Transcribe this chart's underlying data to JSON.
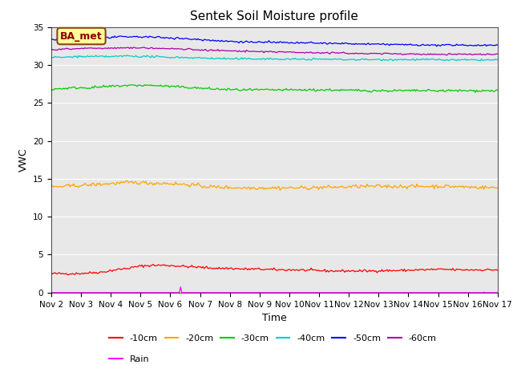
{
  "title": "Sentek Soil Moisture profile",
  "xlabel": "Time",
  "ylabel": "VWC",
  "ylim": [
    0,
    35
  ],
  "yticks": [
    0,
    5,
    10,
    15,
    20,
    25,
    30,
    35
  ],
  "x_start": 0,
  "x_end": 15,
  "num_points": 360,
  "annotation": "BA_met",
  "lines": {
    "-10cm": {
      "color": "#ff0000",
      "variation": 0.08,
      "trend": [
        2.5,
        2.5,
        2.5,
        2.6,
        2.7,
        3.0,
        3.2,
        3.5,
        3.6,
        3.6,
        3.5,
        3.4,
        3.3,
        3.2,
        3.2,
        3.1,
        3.1,
        3.05,
        3.0,
        3.0,
        2.95,
        2.9,
        2.85,
        2.85,
        2.85,
        2.85,
        2.9,
        2.9,
        2.95,
        3.0,
        3.05,
        3.05,
        3.0,
        3.0,
        3.0,
        3.0
      ]
    },
    "-20cm": {
      "color": "#ffa500",
      "variation": 0.12,
      "trend": [
        13.9,
        14.0,
        14.1,
        14.2,
        14.3,
        14.4,
        14.5,
        14.5,
        14.4,
        14.4,
        14.3,
        14.2,
        14.0,
        13.9,
        13.85,
        13.8,
        13.8,
        13.8,
        13.8,
        13.8,
        13.8,
        13.85,
        13.9,
        13.9,
        14.0,
        14.0,
        14.0,
        14.0,
        14.0,
        14.0,
        14.0,
        14.0,
        13.95,
        13.9,
        13.85,
        13.8
      ]
    },
    "-30cm": {
      "color": "#00cc00",
      "variation": 0.08,
      "trend": [
        26.8,
        26.9,
        27.0,
        27.0,
        27.1,
        27.2,
        27.3,
        27.3,
        27.3,
        27.2,
        27.1,
        27.0,
        26.9,
        26.8,
        26.75,
        26.7,
        26.7,
        26.7,
        26.7,
        26.7,
        26.7,
        26.7,
        26.7,
        26.65,
        26.65,
        26.6,
        26.6,
        26.6,
        26.6,
        26.6,
        26.6,
        26.6,
        26.6,
        26.6,
        26.6,
        26.6
      ]
    },
    "-40cm": {
      "color": "#00cccc",
      "variation": 0.06,
      "trend": [
        31.0,
        31.0,
        31.1,
        31.1,
        31.1,
        31.1,
        31.2,
        31.1,
        31.1,
        31.0,
        31.0,
        30.95,
        30.9,
        30.85,
        30.8,
        30.8,
        30.8,
        30.8,
        30.75,
        30.75,
        30.75,
        30.75,
        30.75,
        30.7,
        30.7,
        30.7,
        30.7,
        30.7,
        30.7,
        30.7,
        30.7,
        30.65,
        30.65,
        30.65,
        30.65,
        30.65
      ]
    },
    "-50cm": {
      "color": "#0000ff",
      "variation": 0.06,
      "trend": [
        33.3,
        33.4,
        33.5,
        33.55,
        33.6,
        33.65,
        33.7,
        33.7,
        33.65,
        33.6,
        33.5,
        33.4,
        33.3,
        33.2,
        33.1,
        33.05,
        33.0,
        33.0,
        32.95,
        32.9,
        32.9,
        32.85,
        32.85,
        32.8,
        32.75,
        32.75,
        32.7,
        32.7,
        32.65,
        32.6,
        32.6,
        32.6,
        32.6,
        32.6,
        32.6,
        32.6
      ]
    },
    "-60cm": {
      "color": "#aa00aa",
      "variation": 0.05,
      "trend": [
        32.0,
        32.1,
        32.15,
        32.2,
        32.2,
        32.2,
        32.25,
        32.25,
        32.2,
        32.15,
        32.1,
        32.05,
        31.95,
        31.9,
        31.85,
        31.8,
        31.75,
        31.75,
        31.7,
        31.65,
        31.65,
        31.6,
        31.6,
        31.55,
        31.5,
        31.5,
        31.5,
        31.45,
        31.45,
        31.4,
        31.4,
        31.4,
        31.4,
        31.4,
        31.4,
        31.4
      ]
    }
  },
  "rain_color": "#ff00ff",
  "rain_spike_x": 4.35,
  "rain_spike_height": 0.75,
  "rain_spike_x2": 14.55,
  "rain_spike_height2": 0.05,
  "x_tick_labels": [
    "Nov 2",
    "Nov 3",
    "Nov 4",
    "Nov 5",
    "Nov 6",
    "Nov 7",
    "Nov 8",
    "Nov 9",
    "Nov 10",
    "Nov 11",
    "Nov 12",
    "Nov 13",
    "Nov 14",
    "Nov 15",
    "Nov 16",
    "Nov 17"
  ],
  "x_tick_positions": [
    0,
    1,
    2,
    3,
    4,
    5,
    6,
    7,
    8,
    9,
    10,
    11,
    12,
    13,
    14,
    15
  ],
  "background_color": "#e8e8e8",
  "legend_entries": [
    "-10cm",
    "-20cm",
    "-30cm",
    "-40cm",
    "-50cm",
    "-60cm"
  ],
  "legend_colors": [
    "#ff0000",
    "#ffa500",
    "#00cc00",
    "#00cccc",
    "#0000ff",
    "#aa00aa"
  ],
  "rain_label": "Rain",
  "title_fontsize": 11,
  "axis_label_fontsize": 9,
  "tick_fontsize": 7.5
}
